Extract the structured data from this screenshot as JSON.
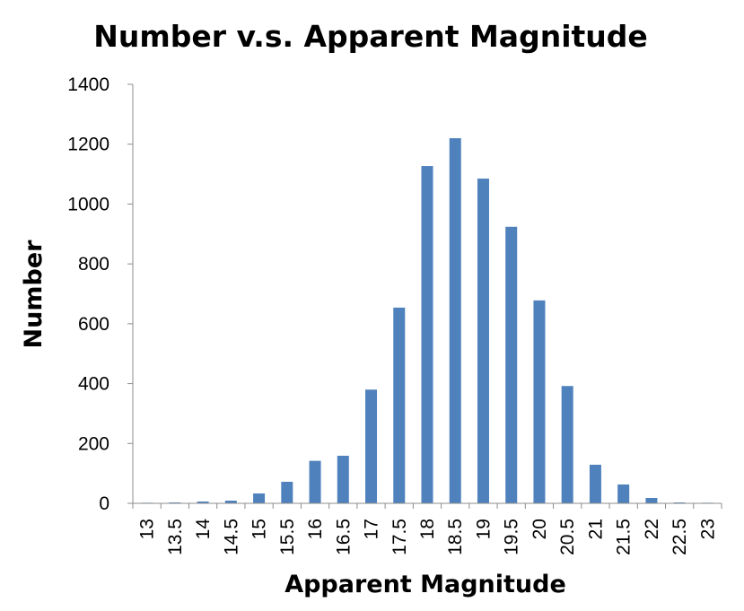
{
  "chart_data": {
    "type": "bar",
    "title": "Number v.s. Apparent Magnitude",
    "xlabel": "Apparent Magnitude",
    "ylabel": "Number",
    "categories": [
      "13",
      "13.5",
      "14",
      "14.5",
      "15",
      "15.5",
      "16",
      "16.5",
      "17",
      "17.5",
      "18",
      "18.5",
      "19",
      "19.5",
      "20",
      "20.5",
      "21",
      "21.5",
      "22",
      "22.5",
      "23"
    ],
    "values": [
      2,
      3,
      6,
      9,
      33,
      72,
      142,
      159,
      380,
      654,
      1127,
      1220,
      1085,
      924,
      678,
      392,
      129,
      63,
      18,
      3,
      2
    ],
    "ylim": [
      0,
      1400
    ],
    "yticks": [
      "0",
      "200",
      "400",
      "600",
      "800",
      "1000",
      "1200",
      "1400"
    ],
    "grid": false,
    "legend": "none",
    "bar_color": "#4f81bd"
  }
}
